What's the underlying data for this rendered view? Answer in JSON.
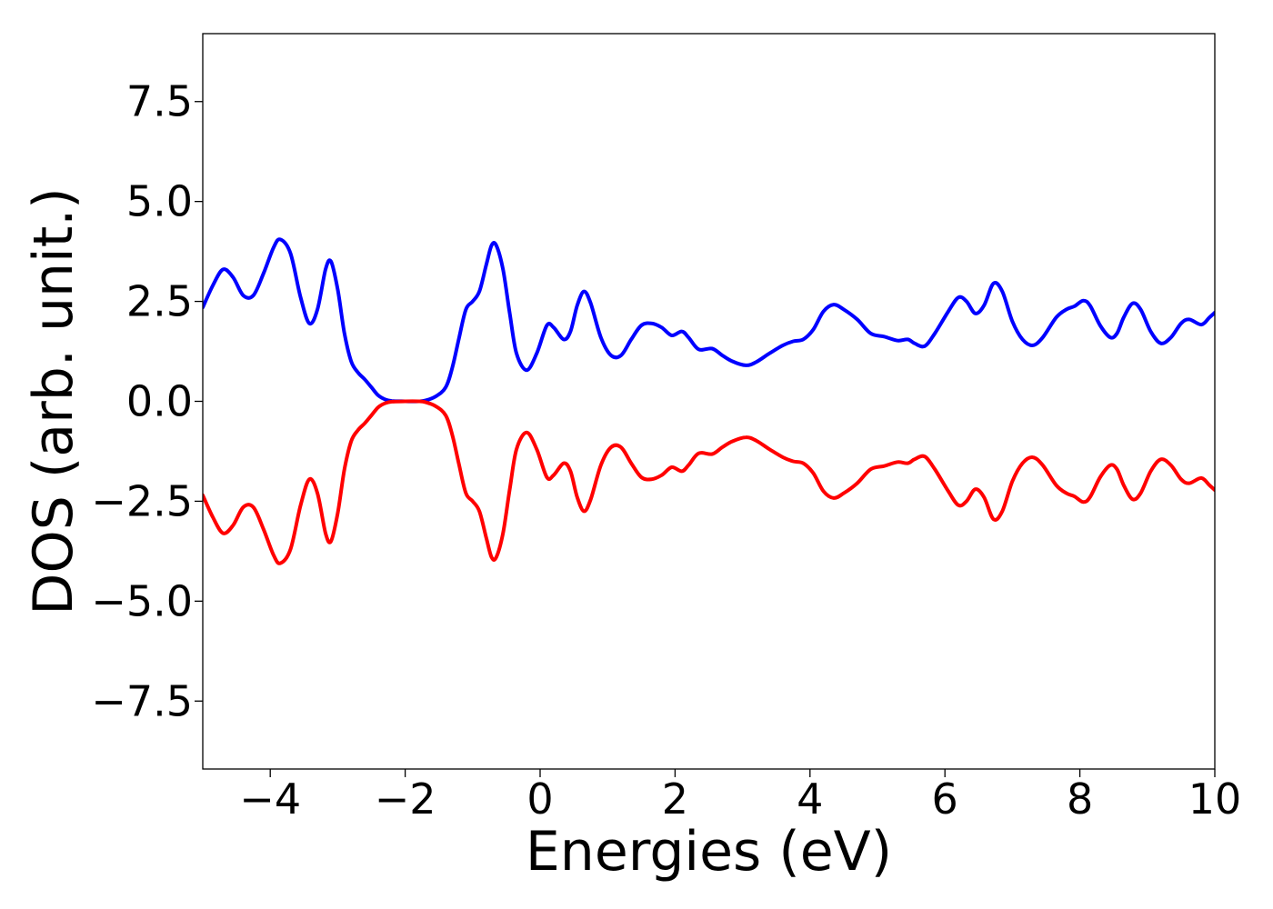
{
  "chart_data": {
    "type": "line",
    "title": "",
    "xlabel": "Energies (eV)",
    "ylabel": "DOS (arb. unit.)",
    "xlim": [
      -5,
      10
    ],
    "ylim": [
      -9.2,
      9.2
    ],
    "xticks": [
      -4,
      -2,
      0,
      2,
      4,
      6,
      8,
      10
    ],
    "xtick_labels": [
      "−4",
      "−2",
      "0",
      "2",
      "4",
      "6",
      "8",
      "10"
    ],
    "yticks": [
      7.5,
      5.0,
      2.5,
      0.0,
      -2.5,
      -5.0,
      -7.5
    ],
    "ytick_labels": [
      "7.5",
      "5.0",
      "2.5",
      "0.0",
      "−2.5",
      "−5.0",
      "−7.5"
    ],
    "grid": false,
    "legend": "none",
    "series": [
      {
        "color": "#0000ff",
        "points": [
          [
            -5.0,
            2.35
          ],
          [
            -4.85,
            2.9
          ],
          [
            -4.7,
            3.3
          ],
          [
            -4.55,
            3.1
          ],
          [
            -4.4,
            2.65
          ],
          [
            -4.25,
            2.65
          ],
          [
            -4.1,
            3.2
          ],
          [
            -3.95,
            3.85
          ],
          [
            -3.85,
            4.05
          ],
          [
            -3.7,
            3.7
          ],
          [
            -3.55,
            2.6
          ],
          [
            -3.42,
            1.95
          ],
          [
            -3.3,
            2.3
          ],
          [
            -3.18,
            3.3
          ],
          [
            -3.1,
            3.5
          ],
          [
            -3.0,
            2.8
          ],
          [
            -2.9,
            1.7
          ],
          [
            -2.8,
            1.0
          ],
          [
            -2.7,
            0.72
          ],
          [
            -2.6,
            0.55
          ],
          [
            -2.5,
            0.35
          ],
          [
            -2.4,
            0.15
          ],
          [
            -2.3,
            0.05
          ],
          [
            -2.2,
            0.01
          ],
          [
            -2.0,
            0.0
          ],
          [
            -1.8,
            0.0
          ],
          [
            -1.7,
            0.02
          ],
          [
            -1.55,
            0.12
          ],
          [
            -1.4,
            0.35
          ],
          [
            -1.3,
            0.85
          ],
          [
            -1.2,
            1.6
          ],
          [
            -1.1,
            2.3
          ],
          [
            -1.0,
            2.5
          ],
          [
            -0.9,
            2.75
          ],
          [
            -0.8,
            3.4
          ],
          [
            -0.72,
            3.9
          ],
          [
            -0.65,
            3.9
          ],
          [
            -0.55,
            3.3
          ],
          [
            -0.45,
            2.2
          ],
          [
            -0.35,
            1.2
          ],
          [
            -0.2,
            0.78
          ],
          [
            -0.05,
            1.2
          ],
          [
            0.1,
            1.9
          ],
          [
            0.2,
            1.85
          ],
          [
            0.35,
            1.55
          ],
          [
            0.45,
            1.75
          ],
          [
            0.55,
            2.4
          ],
          [
            0.65,
            2.75
          ],
          [
            0.75,
            2.45
          ],
          [
            0.9,
            1.6
          ],
          [
            1.05,
            1.15
          ],
          [
            1.2,
            1.15
          ],
          [
            1.35,
            1.55
          ],
          [
            1.5,
            1.9
          ],
          [
            1.65,
            1.95
          ],
          [
            1.8,
            1.85
          ],
          [
            1.95,
            1.65
          ],
          [
            2.1,
            1.75
          ],
          [
            2.2,
            1.6
          ],
          [
            2.35,
            1.3
          ],
          [
            2.55,
            1.32
          ],
          [
            2.7,
            1.15
          ],
          [
            2.85,
            1.0
          ],
          [
            3.05,
            0.9
          ],
          [
            3.2,
            0.98
          ],
          [
            3.4,
            1.2
          ],
          [
            3.6,
            1.4
          ],
          [
            3.75,
            1.5
          ],
          [
            3.9,
            1.55
          ],
          [
            4.05,
            1.8
          ],
          [
            4.2,
            2.25
          ],
          [
            4.35,
            2.42
          ],
          [
            4.5,
            2.3
          ],
          [
            4.7,
            2.05
          ],
          [
            4.9,
            1.7
          ],
          [
            5.1,
            1.62
          ],
          [
            5.3,
            1.52
          ],
          [
            5.45,
            1.55
          ],
          [
            5.55,
            1.45
          ],
          [
            5.7,
            1.38
          ],
          [
            5.85,
            1.7
          ],
          [
            6.05,
            2.25
          ],
          [
            6.2,
            2.6
          ],
          [
            6.32,
            2.5
          ],
          [
            6.45,
            2.2
          ],
          [
            6.58,
            2.4
          ],
          [
            6.72,
            2.95
          ],
          [
            6.85,
            2.75
          ],
          [
            7.0,
            2.0
          ],
          [
            7.15,
            1.55
          ],
          [
            7.3,
            1.4
          ],
          [
            7.45,
            1.6
          ],
          [
            7.65,
            2.1
          ],
          [
            7.8,
            2.3
          ],
          [
            7.92,
            2.38
          ],
          [
            8.05,
            2.52
          ],
          [
            8.15,
            2.4
          ],
          [
            8.3,
            1.9
          ],
          [
            8.45,
            1.6
          ],
          [
            8.55,
            1.7
          ],
          [
            8.65,
            2.1
          ],
          [
            8.78,
            2.45
          ],
          [
            8.9,
            2.3
          ],
          [
            9.05,
            1.75
          ],
          [
            9.2,
            1.45
          ],
          [
            9.35,
            1.6
          ],
          [
            9.5,
            1.95
          ],
          [
            9.62,
            2.05
          ],
          [
            9.8,
            1.92
          ],
          [
            9.92,
            2.1
          ],
          [
            10.0,
            2.22
          ]
        ]
      },
      {
        "color": "#ff0000",
        "points": [
          [
            -5.0,
            -2.35
          ],
          [
            -4.85,
            -2.9
          ],
          [
            -4.7,
            -3.3
          ],
          [
            -4.55,
            -3.1
          ],
          [
            -4.4,
            -2.65
          ],
          [
            -4.25,
            -2.65
          ],
          [
            -4.1,
            -3.2
          ],
          [
            -3.95,
            -3.85
          ],
          [
            -3.85,
            -4.05
          ],
          [
            -3.7,
            -3.7
          ],
          [
            -3.55,
            -2.6
          ],
          [
            -3.42,
            -1.95
          ],
          [
            -3.3,
            -2.3
          ],
          [
            -3.18,
            -3.3
          ],
          [
            -3.1,
            -3.5
          ],
          [
            -3.0,
            -2.8
          ],
          [
            -2.9,
            -1.7
          ],
          [
            -2.8,
            -1.0
          ],
          [
            -2.7,
            -0.72
          ],
          [
            -2.6,
            -0.55
          ],
          [
            -2.5,
            -0.35
          ],
          [
            -2.4,
            -0.15
          ],
          [
            -2.3,
            -0.05
          ],
          [
            -2.2,
            -0.01
          ],
          [
            -2.0,
            0.0
          ],
          [
            -1.8,
            0.0
          ],
          [
            -1.7,
            -0.02
          ],
          [
            -1.55,
            -0.12
          ],
          [
            -1.4,
            -0.35
          ],
          [
            -1.3,
            -0.85
          ],
          [
            -1.2,
            -1.6
          ],
          [
            -1.1,
            -2.3
          ],
          [
            -1.0,
            -2.5
          ],
          [
            -0.9,
            -2.75
          ],
          [
            -0.8,
            -3.4
          ],
          [
            -0.72,
            -3.9
          ],
          [
            -0.65,
            -3.9
          ],
          [
            -0.55,
            -3.3
          ],
          [
            -0.45,
            -2.2
          ],
          [
            -0.35,
            -1.2
          ],
          [
            -0.2,
            -0.78
          ],
          [
            -0.05,
            -1.2
          ],
          [
            0.1,
            -1.9
          ],
          [
            0.2,
            -1.85
          ],
          [
            0.35,
            -1.55
          ],
          [
            0.45,
            -1.75
          ],
          [
            0.55,
            -2.4
          ],
          [
            0.65,
            -2.75
          ],
          [
            0.75,
            -2.45
          ],
          [
            0.9,
            -1.6
          ],
          [
            1.05,
            -1.15
          ],
          [
            1.2,
            -1.15
          ],
          [
            1.35,
            -1.55
          ],
          [
            1.5,
            -1.9
          ],
          [
            1.65,
            -1.95
          ],
          [
            1.8,
            -1.85
          ],
          [
            1.95,
            -1.65
          ],
          [
            2.1,
            -1.75
          ],
          [
            2.2,
            -1.6
          ],
          [
            2.35,
            -1.3
          ],
          [
            2.55,
            -1.32
          ],
          [
            2.7,
            -1.15
          ],
          [
            2.85,
            -1.0
          ],
          [
            3.05,
            -0.9
          ],
          [
            3.2,
            -0.98
          ],
          [
            3.4,
            -1.2
          ],
          [
            3.6,
            -1.4
          ],
          [
            3.75,
            -1.5
          ],
          [
            3.9,
            -1.55
          ],
          [
            4.05,
            -1.8
          ],
          [
            4.2,
            -2.25
          ],
          [
            4.35,
            -2.42
          ],
          [
            4.5,
            -2.3
          ],
          [
            4.7,
            -2.05
          ],
          [
            4.9,
            -1.7
          ],
          [
            5.1,
            -1.62
          ],
          [
            5.3,
            -1.52
          ],
          [
            5.45,
            -1.55
          ],
          [
            5.55,
            -1.45
          ],
          [
            5.7,
            -1.38
          ],
          [
            5.85,
            -1.7
          ],
          [
            6.05,
            -2.25
          ],
          [
            6.2,
            -2.6
          ],
          [
            6.32,
            -2.5
          ],
          [
            6.45,
            -2.2
          ],
          [
            6.58,
            -2.4
          ],
          [
            6.72,
            -2.95
          ],
          [
            6.85,
            -2.75
          ],
          [
            7.0,
            -2.0
          ],
          [
            7.15,
            -1.55
          ],
          [
            7.3,
            -1.4
          ],
          [
            7.45,
            -1.6
          ],
          [
            7.65,
            -2.1
          ],
          [
            7.8,
            -2.3
          ],
          [
            7.92,
            -2.38
          ],
          [
            8.05,
            -2.52
          ],
          [
            8.15,
            -2.4
          ],
          [
            8.3,
            -1.9
          ],
          [
            8.45,
            -1.6
          ],
          [
            8.55,
            -1.7
          ],
          [
            8.65,
            -2.1
          ],
          [
            8.78,
            -2.45
          ],
          [
            8.9,
            -2.3
          ],
          [
            9.05,
            -1.75
          ],
          [
            9.2,
            -1.45
          ],
          [
            9.35,
            -1.6
          ],
          [
            9.5,
            -1.95
          ],
          [
            9.62,
            -2.05
          ],
          [
            9.8,
            -1.92
          ],
          [
            9.92,
            -2.1
          ],
          [
            10.0,
            -2.22
          ]
        ]
      }
    ]
  }
}
